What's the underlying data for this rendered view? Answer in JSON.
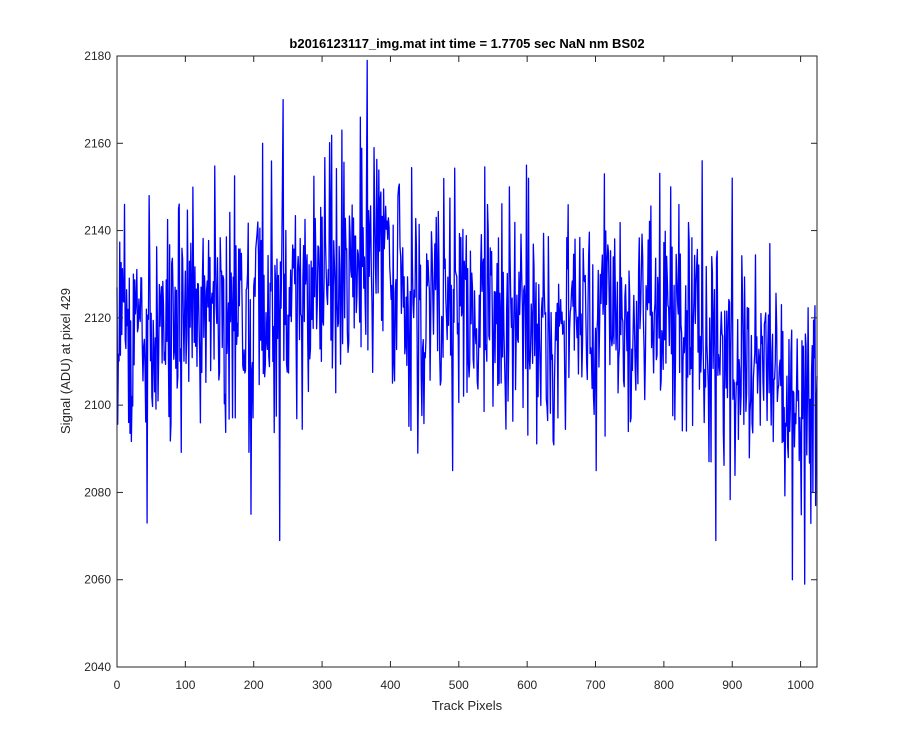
{
  "chart_data": {
    "type": "line",
    "title": "b2016123117_img.mat int time = 1.7705 sec  NaN nm BS02",
    "xlabel": "Track Pixels",
    "ylabel": "Signal (ADU) at pixel 429",
    "xlim": [
      0,
      1024
    ],
    "ylim": [
      2040,
      2180
    ],
    "xticks": [
      0,
      100,
      200,
      300,
      400,
      500,
      600,
      700,
      800,
      900,
      1000
    ],
    "yticks": [
      2040,
      2060,
      2080,
      2100,
      2120,
      2140,
      2160,
      2180
    ],
    "grid": false,
    "legend": "none",
    "series": [
      {
        "name": "Signal",
        "color": "#0000ff",
        "trend": [
          [
            0,
            2112
          ],
          [
            50,
            2116
          ],
          [
            100,
            2120
          ],
          [
            150,
            2120
          ],
          [
            200,
            2121
          ],
          [
            250,
            2124
          ],
          [
            300,
            2126
          ],
          [
            350,
            2130
          ],
          [
            380,
            2133
          ],
          [
            400,
            2128
          ],
          [
            450,
            2122
          ],
          [
            500,
            2120
          ],
          [
            550,
            2122
          ],
          [
            600,
            2121
          ],
          [
            650,
            2120
          ],
          [
            700,
            2119
          ],
          [
            750,
            2119
          ],
          [
            800,
            2120
          ],
          [
            850,
            2118
          ],
          [
            900,
            2112
          ],
          [
            950,
            2108
          ],
          [
            1000,
            2100
          ],
          [
            1024,
            2098
          ]
        ],
        "noise_amplitude": 13,
        "peaks": [
          [
            11,
            2146
          ],
          [
            44,
            2073
          ],
          [
            47,
            2148
          ],
          [
            196,
            2075
          ],
          [
            213,
            2160
          ],
          [
            238,
            2069
          ],
          [
            243,
            2170
          ],
          [
            329,
            2163
          ],
          [
            356,
            2166
          ],
          [
            366,
            2179
          ],
          [
            376,
            2159
          ],
          [
            440,
            2089
          ],
          [
            491,
            2085
          ],
          [
            574,
            2150
          ],
          [
            599,
            2155
          ],
          [
            701,
            2085
          ],
          [
            713,
            2153
          ],
          [
            810,
            2150
          ],
          [
            856,
            2156
          ],
          [
            869,
            2087
          ],
          [
            876,
            2069
          ],
          [
            900,
            2152
          ],
          [
            955,
            2137
          ],
          [
            988,
            2060
          ],
          [
            996,
            2101
          ],
          [
            1006,
            2059
          ],
          [
            1018,
            2080
          ],
          [
            1022,
            2077
          ]
        ]
      }
    ]
  }
}
